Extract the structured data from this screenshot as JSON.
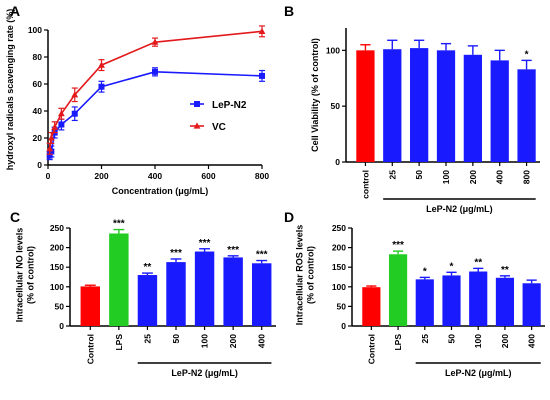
{
  "chart_data": [
    {
      "panel": "A",
      "type": "line",
      "x": [
        6.25,
        12.5,
        25,
        50,
        100,
        200,
        400,
        800
      ],
      "xlabel": "Concentration (μg/mL)",
      "ylabel": "hydroxyl radicals scavenging rate (%)",
      "xlim": [
        0,
        800
      ],
      "ylim": [
        0,
        100
      ],
      "xticks": [
        "0",
        "200",
        "400",
        "600",
        "800"
      ],
      "yticks": [
        "0",
        "20",
        "40",
        "60",
        "80",
        "100"
      ],
      "legend_position": "center-right",
      "series": [
        {
          "name": "LeP-N2",
          "color": "#1a1aff",
          "marker": "square",
          "values": [
            7,
            10,
            24,
            30,
            38,
            58,
            69,
            66
          ],
          "errors": [
            3,
            4,
            4,
            4,
            5,
            4,
            3,
            4
          ]
        },
        {
          "name": "VC",
          "color": "#e31a1c",
          "marker": "triangle",
          "values": [
            12,
            20,
            28,
            38,
            52,
            74,
            91,
            99
          ],
          "errors": [
            4,
            4,
            4,
            4,
            5,
            4,
            3,
            4
          ]
        }
      ]
    },
    {
      "panel": "B",
      "type": "bar",
      "categories": [
        "control",
        "25",
        "50",
        "100",
        "200",
        "400",
        "800"
      ],
      "values": [
        100,
        101,
        102,
        100,
        96,
        91,
        83
      ],
      "errors": [
        5,
        8,
        7,
        6,
        8,
        9,
        8
      ],
      "colors": [
        "#ff0000",
        "#1a1aff",
        "#1a1aff",
        "#1a1aff",
        "#1a1aff",
        "#1a1aff",
        "#1a1aff"
      ],
      "significance": [
        "",
        "",
        "",
        "",
        "",
        "",
        "*"
      ],
      "ylabel": "Cell Viability (% of control)",
      "group_label": "LeP-N2 (μg/mL)",
      "ylim": [
        0,
        120
      ],
      "yticks": [
        "0",
        "50",
        "100"
      ]
    },
    {
      "panel": "C",
      "type": "bar",
      "categories": [
        "Control",
        "LPS",
        "25",
        "50",
        "100",
        "200",
        "400"
      ],
      "values": [
        101,
        236,
        130,
        163,
        190,
        175,
        160
      ],
      "errors": [
        3,
        10,
        5,
        8,
        7,
        4,
        7
      ],
      "colors": [
        "#ff0000",
        "#22cc22",
        "#1a1aff",
        "#1a1aff",
        "#1a1aff",
        "#1a1aff",
        "#1a1aff"
      ],
      "significance": [
        "",
        "***",
        "**",
        "***",
        "***",
        "***",
        "***"
      ],
      "ylabel_lines": [
        "Intracellular NO levels",
        "(% of control)"
      ],
      "group_label": "LeP-N2 (μg/mL)",
      "ylim": [
        0,
        250
      ],
      "yticks": [
        "0",
        "50",
        "100",
        "150",
        "200",
        "250"
      ]
    },
    {
      "panel": "D",
      "type": "bar",
      "categories": [
        "Control",
        "LPS",
        "25",
        "50",
        "100",
        "200",
        "400"
      ],
      "values": [
        99,
        183,
        119,
        129,
        139,
        123,
        109
      ],
      "errors": [
        3,
        8,
        5,
        8,
        8,
        5,
        8
      ],
      "colors": [
        "#ff0000",
        "#22cc22",
        "#1a1aff",
        "#1a1aff",
        "#1a1aff",
        "#1a1aff",
        "#1a1aff"
      ],
      "significance": [
        "",
        "***",
        "*",
        "*",
        "**",
        "**",
        ""
      ],
      "ylabel_lines": [
        "Intracellular ROS levels",
        "(% of control)"
      ],
      "group_label": "LeP-N2 (μg/mL)",
      "ylim": [
        0,
        250
      ],
      "yticks": [
        "0",
        "50",
        "100",
        "150",
        "200",
        "250"
      ]
    }
  ]
}
